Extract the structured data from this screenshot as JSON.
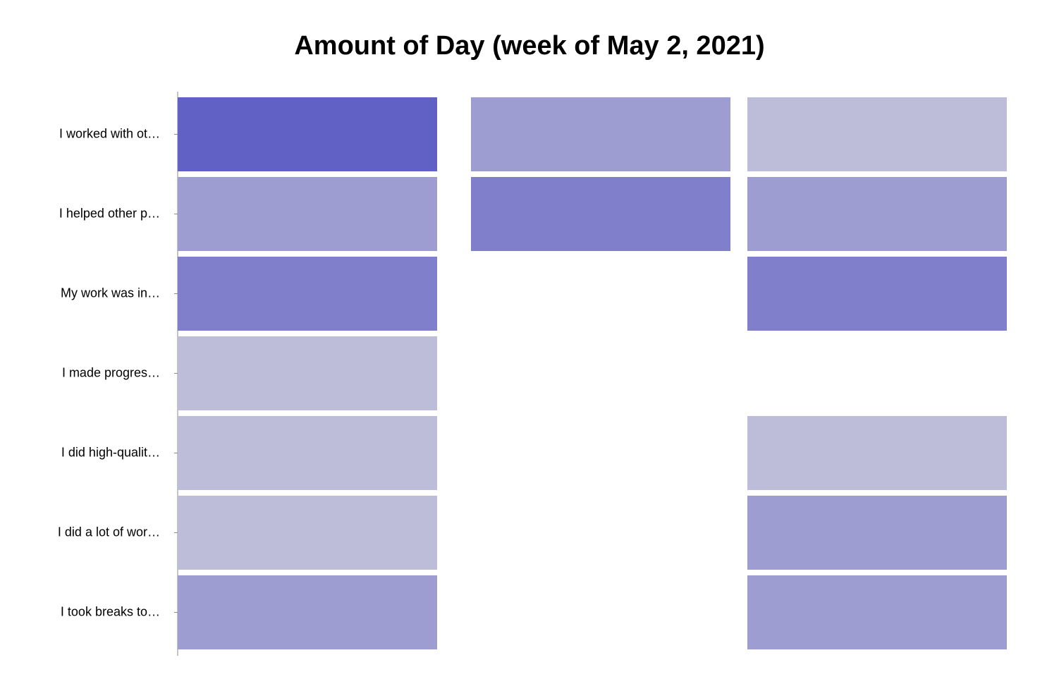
{
  "chart_data": {
    "type": "heatmap",
    "title": "Amount of Day (week of May 2, 2021)",
    "xlabel": "",
    "ylabel": "",
    "rows": [
      "I worked with ot…",
      "I helped other p…",
      "My work was in…",
      "I made progres…",
      "I did high-qualit…",
      "I did a lot of wor…",
      "I took breaks to…"
    ],
    "columns": 3,
    "levels": [
      [
        4,
        2,
        1
      ],
      [
        2,
        3,
        2
      ],
      [
        3,
        null,
        3
      ],
      [
        1,
        null,
        null
      ],
      [
        1,
        null,
        1
      ],
      [
        1,
        null,
        2
      ],
      [
        2,
        null,
        2
      ]
    ],
    "colors": {
      "1": "#bdbdd9",
      "2": "#9e9dd1",
      "3": "#807fcb",
      "4": "#6160c5"
    },
    "grid": false,
    "legend": "none"
  }
}
